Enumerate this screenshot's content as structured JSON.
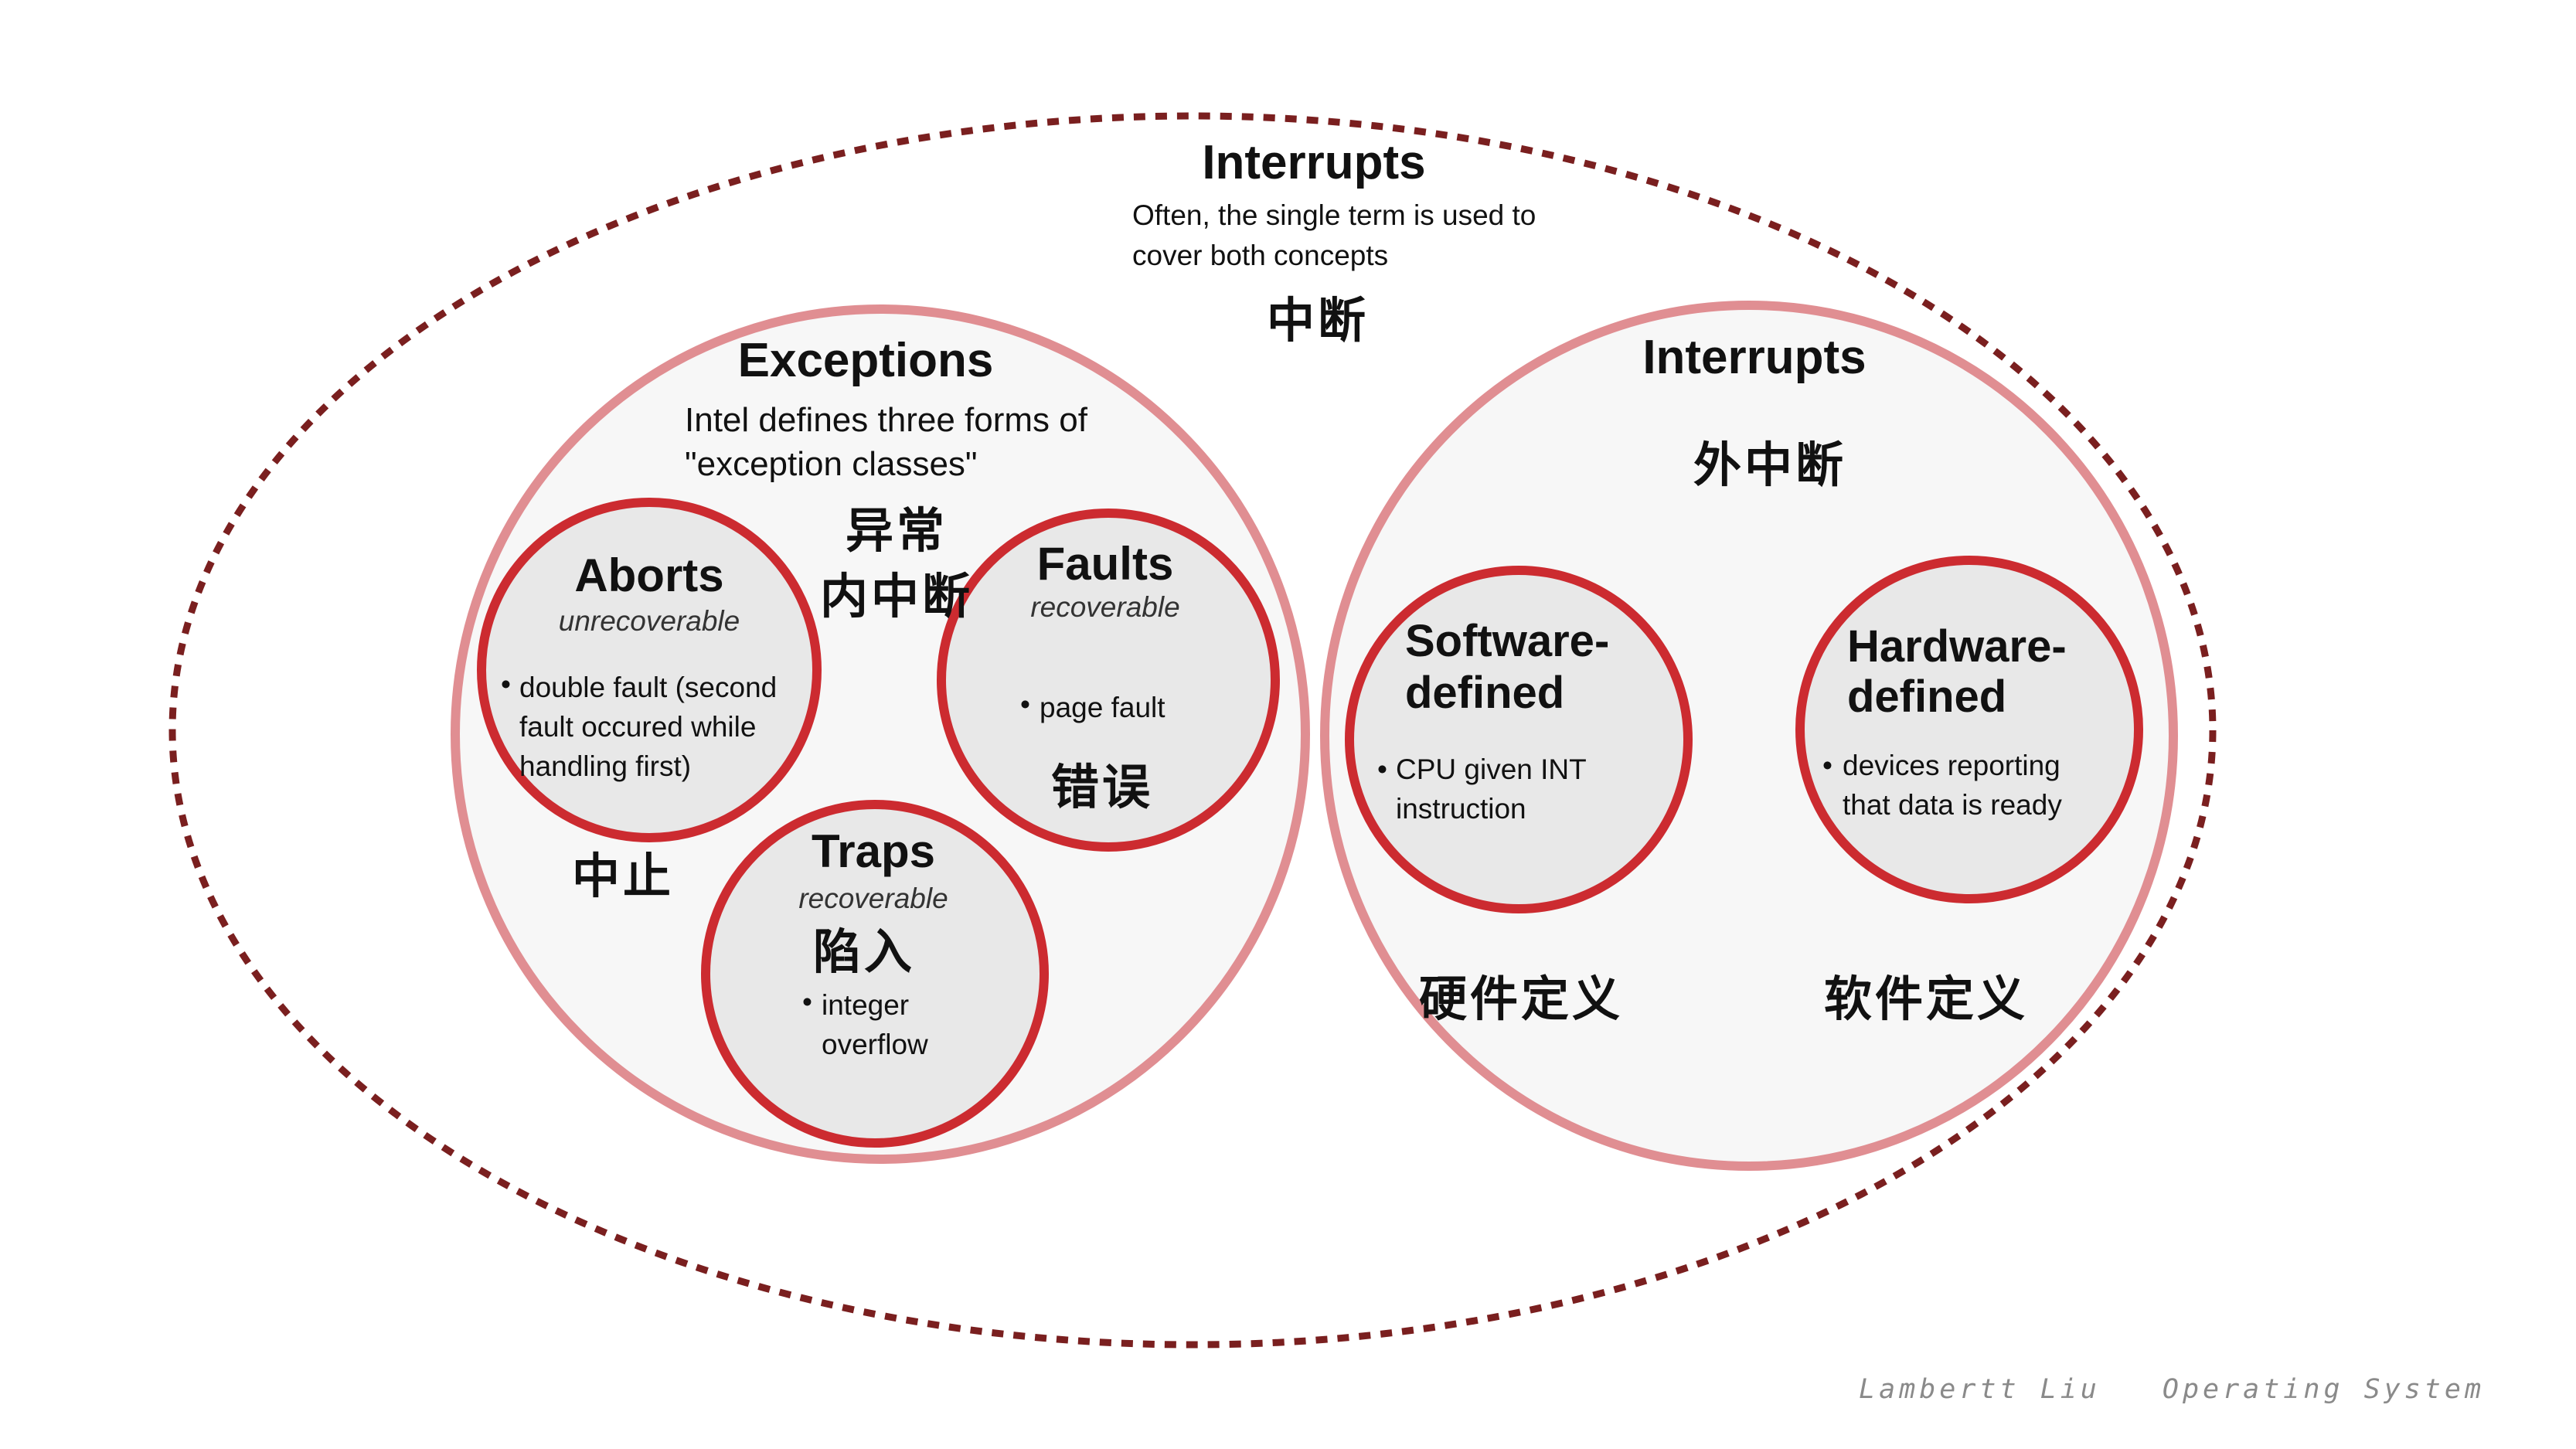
{
  "colors": {
    "outer_dashed": "#7a1f1f",
    "group_stroke": "#e08e92",
    "group_fill": "#f7f7f7",
    "class_stroke": "#cc2b30",
    "class_fill": "#e8e8e8"
  },
  "interrupts_outer": {
    "title": "Interrupts",
    "description": "Often, the single term is used to cover both concepts",
    "chinese": "中断"
  },
  "exceptions": {
    "title": "Exceptions",
    "description": "Intel defines three forms of \"exception classes\"",
    "chinese_line1": "异常",
    "chinese_line2": "内中断"
  },
  "aborts": {
    "title": "Aborts",
    "subtitle": "unrecoverable",
    "bullet": "double fault (second fault occured while handling first)",
    "chinese": "中止"
  },
  "faults": {
    "title": "Faults",
    "subtitle": "recoverable",
    "bullet": "page fault",
    "chinese": "错误"
  },
  "traps": {
    "title": "Traps",
    "subtitle": "recoverable",
    "bullet": "integer overflow",
    "chinese": "陷入"
  },
  "interrupts_inner": {
    "title": "Interrupts",
    "chinese": "外中断"
  },
  "software_defined": {
    "title_line1": "Software-",
    "title_line2": "defined",
    "bullet": "CPU given INT instruction",
    "chinese": "硬件定义"
  },
  "hardware_defined": {
    "title_line1": "Hardware-",
    "title_line2": "defined",
    "bullet": "devices reporting that data is ready",
    "chinese": "软件定义"
  },
  "footer": {
    "author": "Lambertt Liu",
    "course": "Operating System"
  }
}
